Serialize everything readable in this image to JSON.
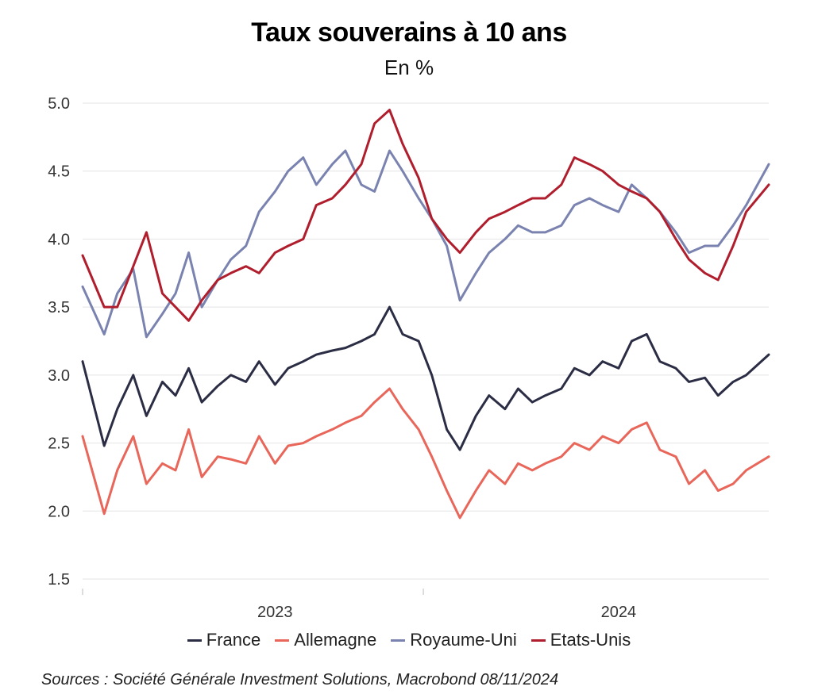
{
  "chart_data": {
    "type": "line",
    "title": "Taux souverains à 10 ans",
    "subtitle": "En %",
    "ylim": [
      1.5,
      5.0
    ],
    "yticks": [
      1.5,
      2.0,
      2.5,
      3.0,
      3.5,
      4.0,
      4.5,
      5.0
    ],
    "ytick_labels": [
      "1.5",
      "2.0",
      "2.5",
      "3.0",
      "3.5",
      "4.0",
      "4.5",
      "5.0"
    ],
    "xlim": [
      "2022-11-08",
      "2024-11-08"
    ],
    "xtick_labels": [
      "2023",
      "2024"
    ],
    "xlabel_dates": [
      "2023-06-01",
      "2024-06-01"
    ],
    "year_marks": [
      "2022-11-08",
      "2023-11-06"
    ],
    "grid": true,
    "legend_position": "bottom",
    "x": [
      "2022-11-08",
      "2022-12-01",
      "2022-12-15",
      "2023-01-01",
      "2023-01-15",
      "2023-02-01",
      "2023-02-15",
      "2023-03-01",
      "2023-03-15",
      "2023-04-01",
      "2023-04-15",
      "2023-05-01",
      "2023-05-15",
      "2023-06-01",
      "2023-06-15",
      "2023-07-01",
      "2023-07-15",
      "2023-08-01",
      "2023-08-15",
      "2023-09-01",
      "2023-09-15",
      "2023-10-01",
      "2023-10-15",
      "2023-11-01",
      "2023-11-15",
      "2023-12-01",
      "2023-12-15",
      "2024-01-01",
      "2024-01-15",
      "2024-02-01",
      "2024-02-15",
      "2024-03-01",
      "2024-03-15",
      "2024-04-01",
      "2024-04-15",
      "2024-05-01",
      "2024-05-15",
      "2024-06-01",
      "2024-06-15",
      "2024-07-01",
      "2024-07-15",
      "2024-08-01",
      "2024-08-15",
      "2024-09-01",
      "2024-09-15",
      "2024-10-01",
      "2024-10-15",
      "2024-11-08"
    ],
    "series": [
      {
        "name": "France",
        "color": "#2b2d45",
        "values": [
          3.1,
          2.48,
          2.75,
          3.0,
          2.7,
          2.95,
          2.85,
          3.05,
          2.8,
          2.92,
          3.0,
          2.95,
          3.1,
          2.93,
          3.05,
          3.1,
          3.15,
          3.18,
          3.2,
          3.25,
          3.3,
          3.5,
          3.3,
          3.25,
          3.0,
          2.6,
          2.45,
          2.7,
          2.85,
          2.75,
          2.9,
          2.8,
          2.85,
          2.9,
          3.05,
          3.0,
          3.1,
          3.05,
          3.25,
          3.3,
          3.1,
          3.05,
          2.95,
          2.98,
          2.85,
          2.95,
          3.0,
          3.15
        ]
      },
      {
        "name": "Allemagne",
        "color": "#e8665a",
        "values": [
          2.55,
          1.98,
          2.3,
          2.55,
          2.2,
          2.35,
          2.3,
          2.6,
          2.25,
          2.4,
          2.38,
          2.35,
          2.55,
          2.35,
          2.48,
          2.5,
          2.55,
          2.6,
          2.65,
          2.7,
          2.8,
          2.9,
          2.75,
          2.6,
          2.4,
          2.15,
          1.95,
          2.15,
          2.3,
          2.2,
          2.35,
          2.3,
          2.35,
          2.4,
          2.5,
          2.45,
          2.55,
          2.5,
          2.6,
          2.65,
          2.45,
          2.4,
          2.2,
          2.3,
          2.15,
          2.2,
          2.3,
          2.4
        ]
      },
      {
        "name": "Royaume-Uni",
        "color": "#7a83b0",
        "values": [
          3.65,
          3.3,
          3.6,
          3.78,
          3.28,
          3.45,
          3.6,
          3.9,
          3.5,
          3.7,
          3.85,
          3.95,
          4.2,
          4.35,
          4.5,
          4.6,
          4.4,
          4.55,
          4.65,
          4.4,
          4.35,
          4.65,
          4.5,
          4.3,
          4.15,
          3.95,
          3.55,
          3.75,
          3.9,
          4.0,
          4.1,
          4.05,
          4.05,
          4.1,
          4.25,
          4.3,
          4.25,
          4.2,
          4.4,
          4.3,
          4.2,
          4.05,
          3.9,
          3.95,
          3.95,
          4.1,
          4.25,
          4.55
        ]
      },
      {
        "name": "Etats-Unis",
        "color": "#b01e2d",
        "values": [
          3.88,
          3.5,
          3.5,
          3.8,
          4.05,
          3.6,
          3.5,
          3.4,
          3.55,
          3.7,
          3.75,
          3.8,
          3.75,
          3.9,
          3.95,
          4.0,
          4.25,
          4.3,
          4.4,
          4.55,
          4.85,
          4.95,
          4.7,
          4.45,
          4.15,
          4.0,
          3.9,
          4.05,
          4.15,
          4.2,
          4.25,
          4.3,
          4.3,
          4.4,
          4.6,
          4.55,
          4.5,
          4.4,
          4.35,
          4.3,
          4.2,
          4.0,
          3.85,
          3.75,
          3.7,
          3.95,
          4.2,
          4.4
        ]
      }
    ]
  },
  "legend": {
    "items": [
      {
        "label": "France",
        "color": "#2b2d45"
      },
      {
        "label": "Allemagne",
        "color": "#e8665a"
      },
      {
        "label": "Royaume-Uni",
        "color": "#7a83b0"
      },
      {
        "label": "Etats-Unis",
        "color": "#b01e2d"
      }
    ]
  },
  "source": "Sources : Société Générale Investment Solutions, Macrobond 08/11/2024"
}
